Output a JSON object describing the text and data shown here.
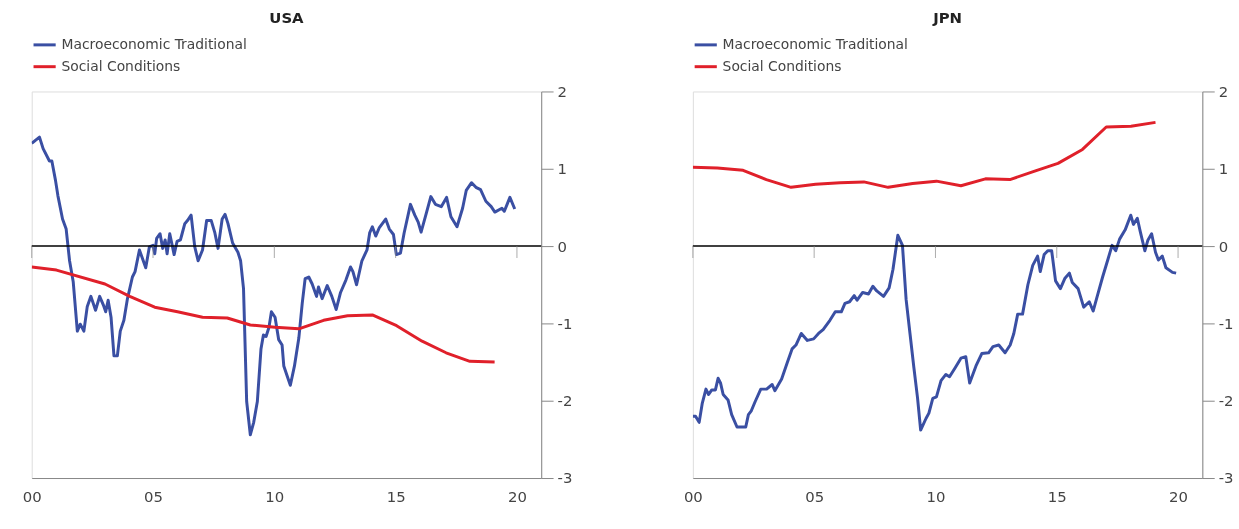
{
  "chart_data": [
    {
      "type": "line",
      "title": "USA",
      "legend": "top",
      "grid": false,
      "line_style": "solid",
      "marker": "none",
      "xlim": [
        0,
        21
      ],
      "xticks": [
        {
          "value": 0,
          "label": "00"
        },
        {
          "value": 5,
          "label": "05"
        },
        {
          "value": 10,
          "label": "10"
        },
        {
          "value": 15,
          "label": "15"
        },
        {
          "value": 20,
          "label": "20"
        }
      ],
      "ylim": [
        -3,
        2
      ],
      "yticks": [
        -3,
        -2,
        -1,
        0,
        1,
        2
      ],
      "ref_lines": [
        {
          "axis": "y",
          "value": 0,
          "color": "#000000"
        }
      ],
      "series": [
        {
          "name": "Macroeconomic Traditional",
          "color": "#3a4fa3",
          "x": [
            0,
            0.32,
            0.47,
            0.73,
            0.83,
            0.98,
            1.08,
            1.27,
            1.42,
            1.56,
            1.71,
            1.88,
            2.0,
            2.15,
            2.29,
            2.44,
            2.63,
            2.8,
            2.95,
            3.05,
            3.15,
            3.27,
            3.39,
            3.53,
            3.65,
            3.8,
            3.94,
            4.15,
            4.26,
            4.44,
            4.7,
            4.85,
            5.0,
            5.07,
            5.15,
            5.29,
            5.4,
            5.5,
            5.58,
            5.69,
            5.87,
            5.99,
            6.13,
            6.19,
            6.31,
            6.42,
            6.57,
            6.72,
            6.86,
            7.04,
            7.21,
            7.4,
            7.55,
            7.68,
            7.85,
            7.97,
            8.09,
            8.28,
            8.5,
            8.61,
            8.73,
            8.86,
            9.01,
            9.15,
            9.3,
            9.45,
            9.55,
            9.66,
            9.78,
            9.88,
            10.03,
            10.18,
            10.32,
            10.39,
            10.54,
            10.66,
            10.83,
            11.01,
            11.15,
            11.27,
            11.42,
            11.56,
            11.74,
            11.82,
            11.97,
            12.18,
            12.37,
            12.55,
            12.73,
            12.95,
            13.14,
            13.24,
            13.39,
            13.61,
            13.82,
            13.93,
            14.04,
            14.18,
            14.33,
            14.59,
            14.74,
            14.91,
            15.03,
            15.2,
            15.35,
            15.61,
            15.79,
            15.93,
            16.05,
            16.26,
            16.45,
            16.64,
            16.88,
            17.1,
            17.28,
            17.53,
            17.76,
            17.91,
            18.13,
            18.31,
            18.5,
            18.72,
            18.94,
            19.09,
            19.38,
            19.48,
            19.71,
            19.91
          ],
          "values": [
            1.33,
            1.41,
            1.26,
            1.1,
            1.1,
            0.85,
            0.65,
            0.35,
            0.22,
            -0.19,
            -0.46,
            -1.1,
            -1.01,
            -1.1,
            -0.78,
            -0.65,
            -0.83,
            -0.65,
            -0.76,
            -0.85,
            -0.7,
            -0.92,
            -1.42,
            -1.42,
            -1.1,
            -0.96,
            -0.69,
            -0.4,
            -0.33,
            -0.05,
            -0.28,
            -0.01,
            0.01,
            -0.1,
            0.1,
            0.16,
            -0.03,
            0.08,
            -0.1,
            0.16,
            -0.11,
            0.06,
            0.08,
            0.15,
            0.29,
            0.33,
            0.4,
            -0.01,
            -0.19,
            -0.05,
            0.33,
            0.33,
            0.17,
            -0.03,
            0.35,
            0.41,
            0.29,
            0.04,
            -0.08,
            -0.19,
            -0.55,
            -2.01,
            -2.44,
            -2.28,
            -2.01,
            -1.33,
            -1.15,
            -1.17,
            -1.05,
            -0.85,
            -0.92,
            -1.21,
            -1.28,
            -1.55,
            -1.69,
            -1.8,
            -1.55,
            -1.19,
            -0.74,
            -0.42,
            -0.4,
            -0.49,
            -0.65,
            -0.53,
            -0.68,
            -0.51,
            -0.65,
            -0.82,
            -0.6,
            -0.44,
            -0.27,
            -0.33,
            -0.5,
            -0.19,
            -0.05,
            0.17,
            0.25,
            0.13,
            0.24,
            0.35,
            0.22,
            0.15,
            -0.11,
            -0.09,
            0.17,
            0.54,
            0.4,
            0.31,
            0.18,
            0.42,
            0.64,
            0.54,
            0.51,
            0.63,
            0.38,
            0.25,
            0.49,
            0.72,
            0.82,
            0.76,
            0.73,
            0.58,
            0.51,
            0.44,
            0.49,
            0.45,
            0.63,
            0.48
          ]
        },
        {
          "name": "Social Conditions",
          "color": "#e0202a",
          "x": [
            0,
            1.02,
            3.02,
            4.04,
            5.07,
            6.01,
            7.04,
            8.06,
            9.01,
            10.03,
            11.01,
            12.03,
            13.02,
            14.04,
            15.04,
            16.09,
            17.08,
            18.06,
            19.08
          ],
          "values": [
            -0.27,
            -0.31,
            -0.49,
            -0.65,
            -0.79,
            -0.85,
            -0.92,
            -0.93,
            -1.02,
            -1.05,
            -1.07,
            -0.96,
            -0.9,
            -0.89,
            -1.03,
            -1.23,
            -1.38,
            -1.49,
            -1.5
          ]
        }
      ]
    },
    {
      "type": "line",
      "title": "JPN",
      "legend": "top",
      "grid": false,
      "line_style": "solid",
      "marker": "none",
      "xlim": [
        0,
        21
      ],
      "xticks": [
        {
          "value": 0,
          "label": "00"
        },
        {
          "value": 5,
          "label": "05"
        },
        {
          "value": 10,
          "label": "10"
        },
        {
          "value": 15,
          "label": "15"
        },
        {
          "value": 20,
          "label": "20"
        }
      ],
      "ylim": [
        -3,
        2
      ],
      "yticks": [
        -3,
        -2,
        -1,
        0,
        1,
        2
      ],
      "ref_lines": [
        {
          "axis": "y",
          "value": 0,
          "color": "#000000"
        }
      ],
      "series": [
        {
          "name": "Macroeconomic Traditional",
          "color": "#3a4fa3",
          "x": [
            0,
            0.11,
            0.26,
            0.39,
            0.54,
            0.65,
            0.78,
            0.93,
            1.04,
            1.14,
            1.25,
            1.45,
            1.6,
            1.82,
            2.18,
            2.29,
            2.41,
            2.57,
            2.8,
            3.04,
            3.27,
            3.38,
            3.66,
            3.89,
            4.09,
            4.25,
            4.47,
            4.72,
            4.98,
            5.18,
            5.37,
            5.65,
            5.87,
            6.12,
            6.27,
            6.46,
            6.65,
            6.77,
            7.0,
            7.24,
            7.42,
            7.58,
            7.86,
            8.09,
            8.25,
            8.45,
            8.64,
            8.79,
            8.95,
            9.11,
            9.26,
            9.39,
            9.61,
            9.73,
            9.89,
            10.04,
            10.23,
            10.43,
            10.58,
            10.82,
            11.05,
            11.25,
            11.41,
            11.67,
            11.91,
            12.19,
            12.37,
            12.61,
            12.87,
            13.08,
            13.23,
            13.39,
            13.59,
            13.81,
            14.01,
            14.21,
            14.32,
            14.48,
            14.63,
            14.79,
            14.95,
            15.15,
            15.33,
            15.52,
            15.64,
            15.88,
            16.11,
            16.34,
            16.5,
            16.65,
            16.89,
            17.12,
            17.28,
            17.43,
            17.59,
            17.82,
            18.05,
            18.16,
            18.32,
            18.44,
            18.63,
            18.76,
            18.91,
            19.07,
            19.19,
            19.35,
            19.5,
            19.77,
            19.92
          ],
          "values": [
            -2.2,
            -2.2,
            -2.28,
            -2.03,
            -1.85,
            -1.92,
            -1.86,
            -1.86,
            -1.71,
            -1.77,
            -1.92,
            -1.99,
            -2.18,
            -2.34,
            -2.34,
            -2.18,
            -2.13,
            -2.01,
            -1.85,
            -1.85,
            -1.79,
            -1.87,
            -1.72,
            -1.51,
            -1.33,
            -1.28,
            -1.13,
            -1.22,
            -1.2,
            -1.13,
            -1.08,
            -0.96,
            -0.85,
            -0.85,
            -0.74,
            -0.72,
            -0.64,
            -0.7,
            -0.6,
            -0.62,
            -0.52,
            -0.58,
            -0.65,
            -0.54,
            -0.3,
            0.14,
            0.01,
            -0.69,
            -1.13,
            -1.57,
            -1.96,
            -2.38,
            -2.23,
            -2.16,
            -1.97,
            -1.95,
            -1.74,
            -1.66,
            -1.69,
            -1.57,
            -1.45,
            -1.43,
            -1.77,
            -1.55,
            -1.39,
            -1.38,
            -1.3,
            -1.28,
            -1.38,
            -1.28,
            -1.13,
            -0.88,
            -0.88,
            -0.5,
            -0.25,
            -0.13,
            -0.33,
            -0.11,
            -0.06,
            -0.06,
            -0.45,
            -0.55,
            -0.42,
            -0.35,
            -0.47,
            -0.55,
            -0.79,
            -0.72,
            -0.84,
            -0.67,
            -0.4,
            -0.16,
            0.01,
            -0.06,
            0.09,
            0.21,
            0.4,
            0.28,
            0.36,
            0.19,
            -0.06,
            0.08,
            0.16,
            -0.08,
            -0.18,
            -0.13,
            -0.28,
            -0.34,
            -0.35
          ]
        },
        {
          "name": "Social Conditions",
          "color": "#e0202a",
          "x": [
            0,
            1.01,
            2.07,
            3.03,
            4.05,
            5.06,
            6.07,
            7.05,
            8.05,
            9.06,
            10.04,
            11.05,
            12.06,
            13.07,
            14.09,
            15.05,
            16.06,
            17.04,
            18.06,
            19.07
          ],
          "values": [
            1.02,
            1.01,
            0.98,
            0.86,
            0.76,
            0.8,
            0.82,
            0.83,
            0.76,
            0.81,
            0.84,
            0.78,
            0.87,
            0.86,
            0.97,
            1.07,
            1.25,
            1.54,
            1.55,
            1.6
          ]
        }
      ]
    }
  ]
}
